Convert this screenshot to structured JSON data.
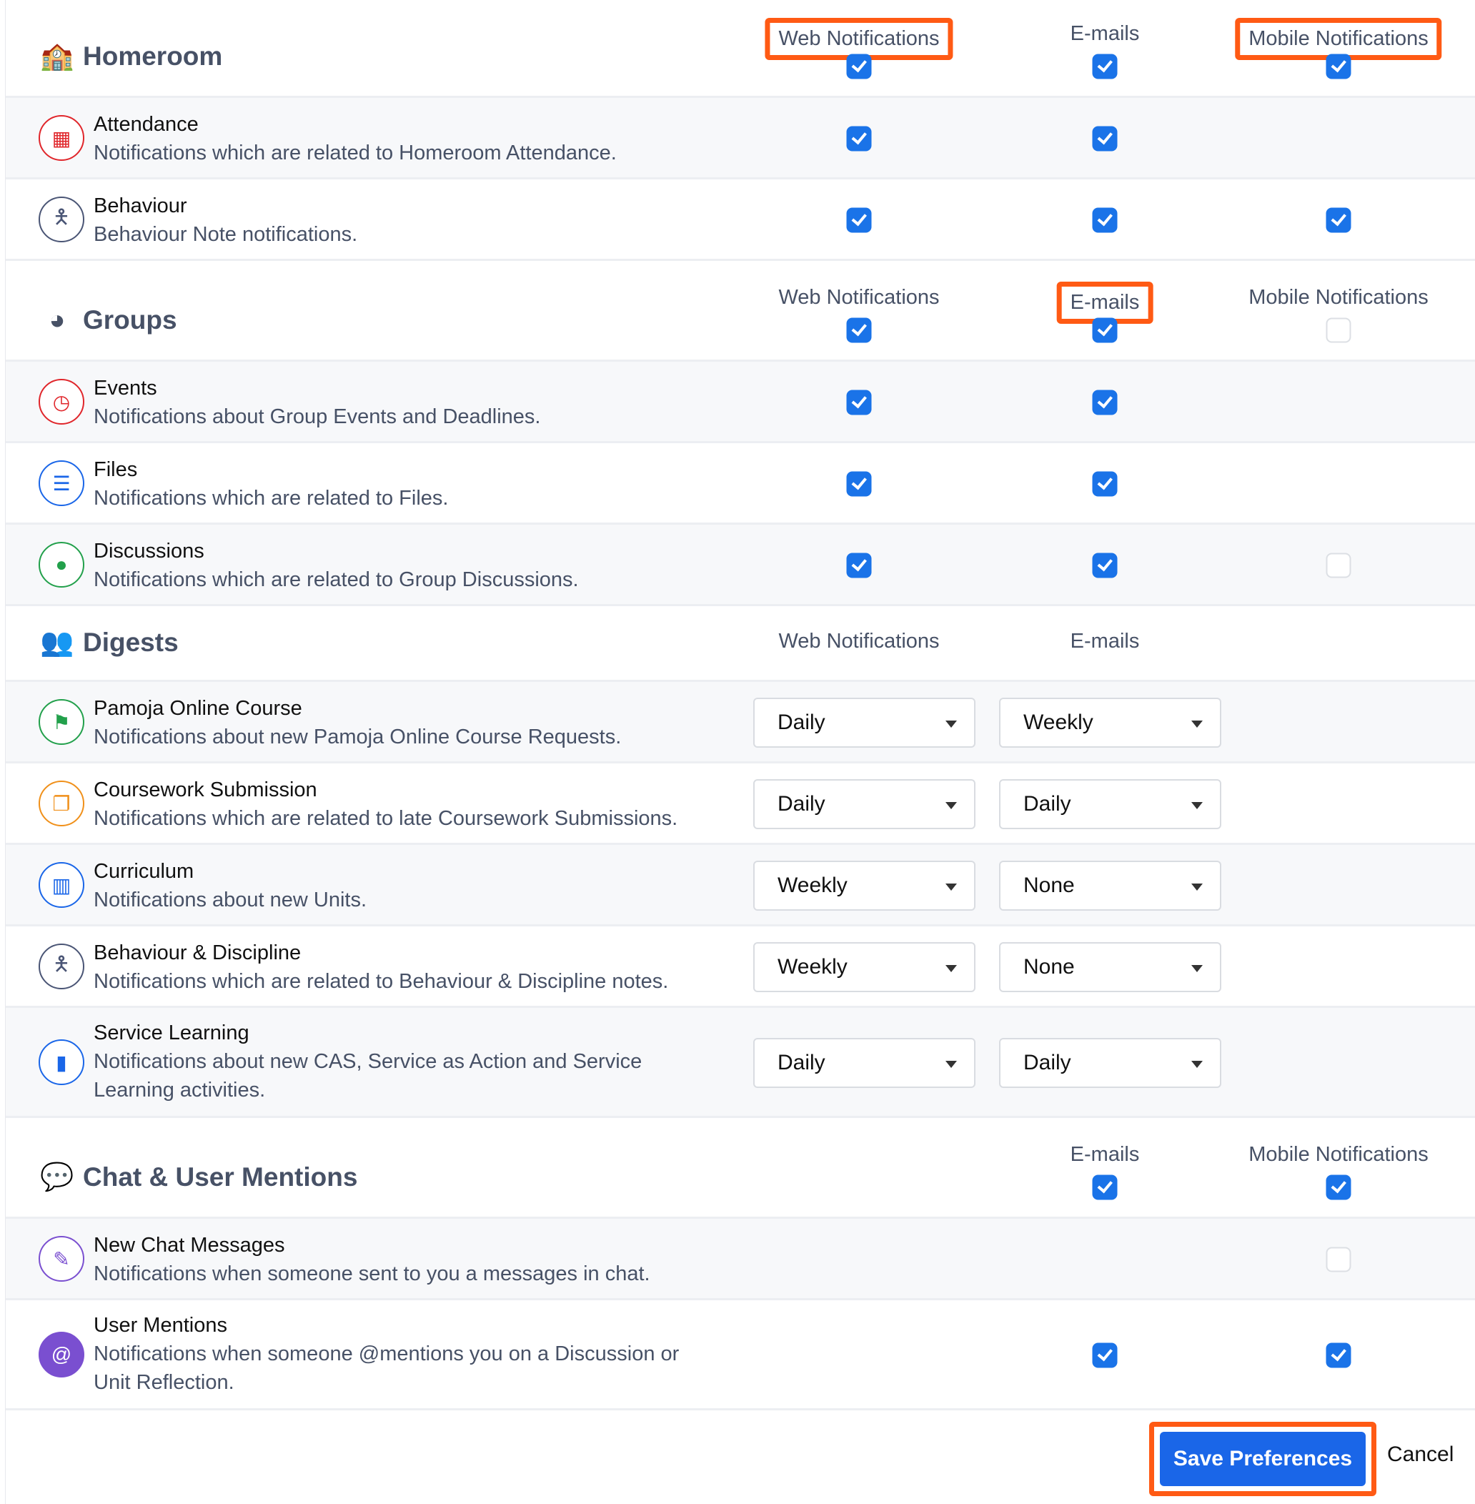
{
  "columns": {
    "web": "Web Notifications",
    "email": "E-mails",
    "mobile": "Mobile Notifications"
  },
  "sections": [
    {
      "title": "Homeroom",
      "icon": "school-building-icon",
      "cols": [
        "web",
        "email",
        "mobile"
      ],
      "header_checks": {
        "web": true,
        "email": true,
        "mobile": true
      },
      "highlight": [
        "web",
        "mobile"
      ],
      "items": [
        {
          "title": "Attendance",
          "desc": "Notifications which are related to Homeroom Attendance.",
          "icon": "calendar-icon",
          "color": "#e0262b",
          "checks": {
            "web": true,
            "email": true,
            "mobile": null
          }
        },
        {
          "title": "Behaviour",
          "desc": "Behaviour Note notifications.",
          "icon": "person-icon",
          "color": "#4a5575",
          "checks": {
            "web": true,
            "email": true,
            "mobile": true
          }
        }
      ]
    },
    {
      "title": "Groups",
      "icon": "groups-pie-icon",
      "cols": [
        "web",
        "email",
        "mobile"
      ],
      "header_checks": {
        "web": true,
        "email": true,
        "mobile": false
      },
      "highlight": [
        "email"
      ],
      "items": [
        {
          "title": "Events",
          "desc": "Notifications about Group Events and Deadlines.",
          "icon": "clock-icon",
          "color": "#e0262b",
          "checks": {
            "web": true,
            "email": true,
            "mobile": null
          }
        },
        {
          "title": "Files",
          "desc": "Notifications which are related to Files.",
          "icon": "file-cabinet-icon",
          "color": "#1a66e8",
          "checks": {
            "web": true,
            "email": true,
            "mobile": null
          }
        },
        {
          "title": "Discussions",
          "desc": "Notifications which are related to Group Discussions.",
          "icon": "chat-bubbles-icon",
          "color": "#22a04b",
          "checks": {
            "web": true,
            "email": true,
            "mobile": false
          }
        }
      ]
    },
    {
      "title": "Digests",
      "icon": "digest-people-icon",
      "cols": [
        "web",
        "email"
      ],
      "header_checks": {},
      "highlight": [],
      "items": [
        {
          "title": "Pamoja Online Course",
          "desc": "Notifications about new Pamoja Online Course Requests.",
          "icon": "pamoja-logo-icon",
          "color": "#22a04b",
          "selects": {
            "web": "Daily",
            "email": "Weekly"
          }
        },
        {
          "title": "Coursework Submission",
          "desc": "Notifications which are related to late Coursework Submissions.",
          "icon": "documents-icon",
          "color": "#f0901a",
          "selects": {
            "web": "Daily",
            "email": "Daily"
          }
        },
        {
          "title": "Curriculum",
          "desc": "Notifications about new Units.",
          "icon": "map-icon",
          "color": "#1a66e8",
          "selects": {
            "web": "Weekly",
            "email": "None"
          }
        },
        {
          "title": "Behaviour & Discipline",
          "desc": "Notifications which are related to Behaviour & Discipline notes.",
          "icon": "person-icon",
          "color": "#4a5575",
          "selects": {
            "web": "Weekly",
            "email": "None"
          }
        },
        {
          "title": "Service Learning",
          "desc": "Notifications about new CAS, Service as Action and Service Learning activities.",
          "icon": "service-chart-icon",
          "color": "#1a66e8",
          "selects": {
            "web": "Daily",
            "email": "Daily"
          }
        }
      ]
    },
    {
      "title": "Chat & User Mentions",
      "icon": "chat-logo-icon",
      "cols": [
        "email",
        "mobile"
      ],
      "header_checks": {
        "email": true,
        "mobile": true
      },
      "highlight": [],
      "items": [
        {
          "title": "New Chat Messages",
          "desc": "Notifications when someone sent to you a messages in chat.",
          "icon": "edit-icon",
          "color": "#7a4fd0",
          "checks": {
            "web": null,
            "email": null,
            "mobile": false
          }
        },
        {
          "title": "User Mentions",
          "desc": "Notifications when someone @mentions you on a Discussion or Unit Reflection.",
          "icon": "mention-icon",
          "color": "#7a4fd0",
          "checks": {
            "web": null,
            "email": true,
            "mobile": true
          }
        }
      ]
    }
  ],
  "footer": {
    "save": "Save Preferences",
    "cancel": "Cancel"
  },
  "colors": {
    "accent": "#1a73e8",
    "highlight": "#ff5a14"
  }
}
